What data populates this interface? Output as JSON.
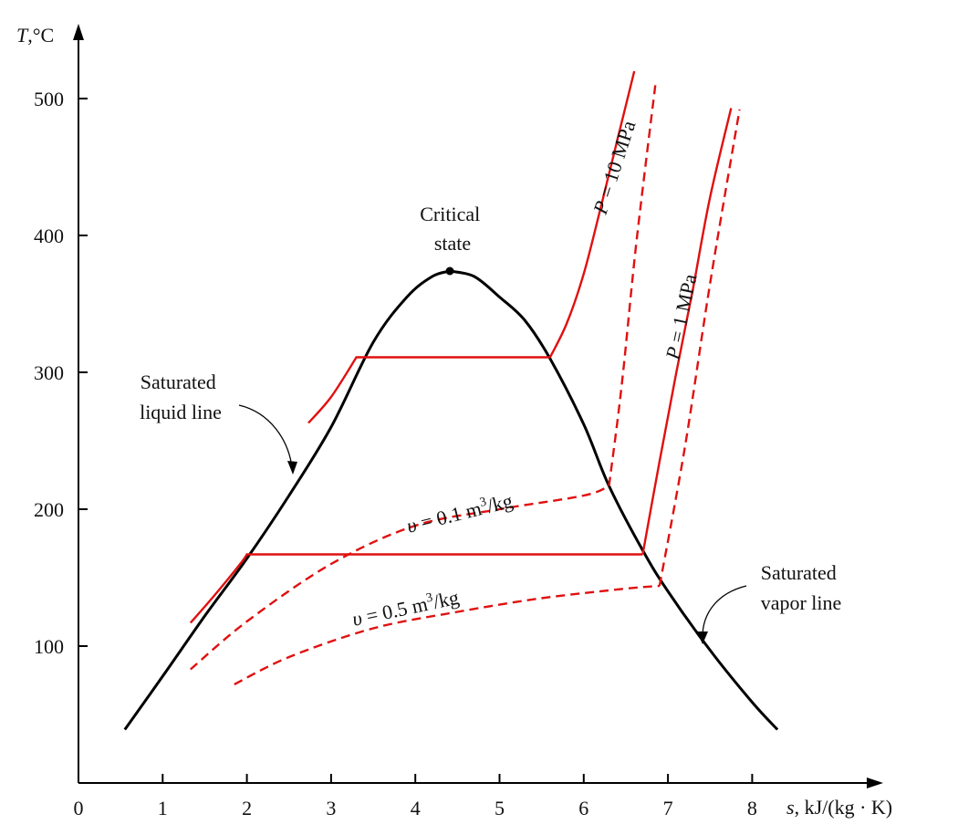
{
  "chart_data": {
    "type": "line",
    "y_axis_label": {
      "italic": "T",
      "rest": ",°C"
    },
    "x_axis_label": {
      "italic": "s",
      "rest": ", kJ/(kg · K)"
    },
    "xlim": [
      0,
      9
    ],
    "ylim": [
      0,
      540
    ],
    "x_ticks": [
      "0",
      "1",
      "2",
      "3",
      "4",
      "5",
      "6",
      "7",
      "8"
    ],
    "y_ticks": [
      "100",
      "200",
      "300",
      "400",
      "500"
    ],
    "critical_point": {
      "s": 4.41,
      "T": 374
    },
    "series": [
      {
        "id": "saturated-liquid-line",
        "style": "dome",
        "points": [
          [
            0.55,
            39
          ],
          [
            1.0,
            78
          ],
          [
            1.5,
            122
          ],
          [
            2.0,
            164
          ],
          [
            2.5,
            210
          ],
          [
            3.0,
            260
          ],
          [
            3.5,
            322
          ],
          [
            3.9,
            355
          ],
          [
            4.2,
            370
          ],
          [
            4.41,
            374
          ]
        ]
      },
      {
        "id": "saturated-vapor-line",
        "style": "dome",
        "points": [
          [
            4.41,
            374
          ],
          [
            4.7,
            370
          ],
          [
            5.0,
            355
          ],
          [
            5.3,
            338
          ],
          [
            5.6,
            310
          ],
          [
            6.0,
            262
          ],
          [
            6.3,
            217
          ],
          [
            6.7,
            170
          ],
          [
            7.0,
            140
          ],
          [
            7.5,
            97
          ],
          [
            8.0,
            59
          ],
          [
            8.3,
            39
          ]
        ]
      },
      {
        "id": "isobar-10mpa",
        "style": "red-solid",
        "points": [
          [
            2.73,
            263
          ],
          [
            3.0,
            282
          ],
          [
            3.3,
            311
          ],
          [
            5.6,
            311
          ],
          [
            5.8,
            336
          ],
          [
            6.0,
            372
          ],
          [
            6.2,
            420
          ],
          [
            6.4,
            470
          ],
          [
            6.6,
            520
          ]
        ]
      },
      {
        "id": "isobar-1mpa",
        "style": "red-solid",
        "points": [
          [
            1.33,
            117
          ],
          [
            1.6,
            136
          ],
          [
            1.92,
            160
          ],
          [
            2.0,
            167
          ],
          [
            6.7,
            167
          ],
          [
            6.9,
            235
          ],
          [
            7.1,
            300
          ],
          [
            7.3,
            362
          ],
          [
            7.5,
            428
          ],
          [
            7.75,
            493
          ]
        ]
      },
      {
        "id": "isochore-0.1",
        "style": "red-dash",
        "points": [
          [
            1.33,
            83
          ],
          [
            2.0,
            118
          ],
          [
            3.0,
            160
          ],
          [
            4.0,
            188
          ],
          [
            5.0,
            200
          ],
          [
            6.0,
            210
          ],
          [
            6.3,
            217
          ],
          [
            6.45,
            290
          ],
          [
            6.62,
            392
          ],
          [
            6.85,
            510
          ]
        ]
      },
      {
        "id": "isochore-0.5",
        "style": "red-dash",
        "points": [
          [
            1.85,
            72
          ],
          [
            2.5,
            92
          ],
          [
            3.5,
            113
          ],
          [
            4.5,
            125
          ],
          [
            5.5,
            135
          ],
          [
            6.5,
            142
          ],
          [
            6.9,
            144
          ],
          [
            7.2,
            245
          ],
          [
            7.5,
            365
          ],
          [
            7.85,
            492
          ]
        ]
      }
    ],
    "annotations": {
      "critical_state": [
        "Critical",
        "state"
      ],
      "saturated_liquid": [
        "Saturated",
        "liquid line"
      ],
      "saturated_vapor": [
        "Saturated",
        "vapor line"
      ],
      "p10": {
        "lhs": "P",
        "rhs": " = 10 MPa"
      },
      "p1": {
        "lhs": "P",
        "rhs": " = 1 MPa"
      },
      "v01": {
        "lhs": "υ",
        "mid": " = 0.1 m",
        "sup": "3",
        "tail": "/kg"
      },
      "v05": {
        "lhs": "υ",
        "mid": " = 0.5 m",
        "sup": "3",
        "tail": "/kg"
      }
    },
    "colors": {
      "dome": "#000000",
      "process": "#e01010"
    }
  }
}
